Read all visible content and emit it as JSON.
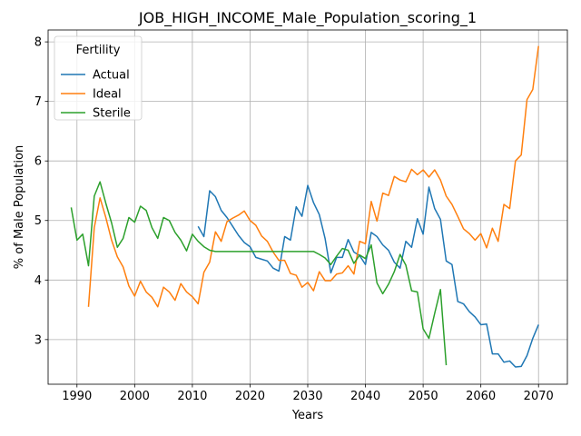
{
  "chart_data": {
    "type": "line",
    "title": "JOB_HIGH_INCOME_Male_Population_scoring_1",
    "xlabel": "Years",
    "ylabel": "% of Male Population",
    "xlim": [
      1985,
      2075
    ],
    "ylim": [
      2.25,
      8.2
    ],
    "xticks": [
      1990,
      2000,
      2010,
      2020,
      2030,
      2040,
      2050,
      2060,
      2070
    ],
    "yticks": [
      3,
      4,
      5,
      6,
      7,
      8
    ],
    "grid": true,
    "legend": {
      "title": "Fertility",
      "placement": "top-left"
    },
    "series": [
      {
        "name": "Actual",
        "color": "#1f77b4",
        "points": [
          [
            2011,
            4.9
          ],
          [
            2012,
            4.73
          ],
          [
            2013,
            5.5
          ],
          [
            2014,
            5.4
          ],
          [
            2015,
            5.17
          ],
          [
            2016,
            5.05
          ],
          [
            2017,
            4.9
          ],
          [
            2018,
            4.75
          ],
          [
            2019,
            4.63
          ],
          [
            2020,
            4.56
          ],
          [
            2021,
            4.38
          ],
          [
            2022,
            4.35
          ],
          [
            2023,
            4.32
          ],
          [
            2024,
            4.2
          ],
          [
            2025,
            4.15
          ],
          [
            2026,
            4.73
          ],
          [
            2027,
            4.67
          ],
          [
            2028,
            5.23
          ],
          [
            2029,
            5.07
          ],
          [
            2030,
            5.59
          ],
          [
            2031,
            5.3
          ],
          [
            2032,
            5.1
          ],
          [
            2033,
            4.7
          ],
          [
            2034,
            4.12
          ],
          [
            2035,
            4.38
          ],
          [
            2036,
            4.38
          ],
          [
            2037,
            4.68
          ],
          [
            2038,
            4.47
          ],
          [
            2039,
            4.41
          ],
          [
            2040,
            4.26
          ],
          [
            2041,
            4.8
          ],
          [
            2042,
            4.73
          ],
          [
            2043,
            4.59
          ],
          [
            2044,
            4.5
          ],
          [
            2045,
            4.3
          ],
          [
            2046,
            4.2
          ],
          [
            2047,
            4.65
          ],
          [
            2048,
            4.55
          ],
          [
            2049,
            5.03
          ],
          [
            2050,
            4.77
          ],
          [
            2051,
            5.56
          ],
          [
            2052,
            5.2
          ],
          [
            2053,
            5.02
          ],
          [
            2054,
            4.32
          ],
          [
            2055,
            4.26
          ],
          [
            2056,
            3.64
          ],
          [
            2057,
            3.6
          ],
          [
            2058,
            3.47
          ],
          [
            2059,
            3.38
          ],
          [
            2060,
            3.25
          ],
          [
            2061,
            3.26
          ],
          [
            2062,
            2.76
          ],
          [
            2063,
            2.76
          ],
          [
            2064,
            2.62
          ],
          [
            2065,
            2.64
          ],
          [
            2066,
            2.54
          ],
          [
            2067,
            2.55
          ],
          [
            2068,
            2.73
          ],
          [
            2069,
            3.02
          ],
          [
            2070,
            3.25
          ]
        ]
      },
      {
        "name": "Ideal",
        "color": "#ff7f0e",
        "points": [
          [
            1992,
            3.55
          ],
          [
            1993,
            4.88
          ],
          [
            1994,
            5.38
          ],
          [
            1995,
            5.05
          ],
          [
            1996,
            4.67
          ],
          [
            1997,
            4.39
          ],
          [
            1998,
            4.22
          ],
          [
            1999,
            3.9
          ],
          [
            2000,
            3.73
          ],
          [
            2001,
            3.98
          ],
          [
            2002,
            3.8
          ],
          [
            2003,
            3.71
          ],
          [
            2004,
            3.55
          ],
          [
            2005,
            3.88
          ],
          [
            2006,
            3.8
          ],
          [
            2007,
            3.66
          ],
          [
            2008,
            3.94
          ],
          [
            2009,
            3.8
          ],
          [
            2010,
            3.72
          ],
          [
            2011,
            3.6
          ],
          [
            2012,
            4.13
          ],
          [
            2013,
            4.3
          ],
          [
            2014,
            4.81
          ],
          [
            2015,
            4.65
          ],
          [
            2016,
            4.98
          ],
          [
            2017,
            5.04
          ],
          [
            2018,
            5.09
          ],
          [
            2019,
            5.16
          ],
          [
            2020,
            5.0
          ],
          [
            2021,
            4.92
          ],
          [
            2022,
            4.74
          ],
          [
            2023,
            4.65
          ],
          [
            2024,
            4.47
          ],
          [
            2025,
            4.33
          ],
          [
            2026,
            4.33
          ],
          [
            2027,
            4.11
          ],
          [
            2028,
            4.08
          ],
          [
            2029,
            3.88
          ],
          [
            2030,
            3.96
          ],
          [
            2031,
            3.82
          ],
          [
            2032,
            4.14
          ],
          [
            2033,
            3.99
          ],
          [
            2034,
            3.99
          ],
          [
            2035,
            4.1
          ],
          [
            2036,
            4.12
          ],
          [
            2037,
            4.24
          ],
          [
            2038,
            4.1
          ],
          [
            2039,
            4.65
          ],
          [
            2040,
            4.61
          ],
          [
            2041,
            5.32
          ],
          [
            2042,
            4.99
          ],
          [
            2043,
            5.46
          ],
          [
            2044,
            5.42
          ],
          [
            2045,
            5.74
          ],
          [
            2046,
            5.68
          ],
          [
            2047,
            5.65
          ],
          [
            2048,
            5.86
          ],
          [
            2049,
            5.77
          ],
          [
            2050,
            5.85
          ],
          [
            2051,
            5.73
          ],
          [
            2052,
            5.85
          ],
          [
            2053,
            5.68
          ],
          [
            2054,
            5.41
          ],
          [
            2055,
            5.27
          ],
          [
            2056,
            5.07
          ],
          [
            2057,
            4.86
          ],
          [
            2058,
            4.78
          ],
          [
            2059,
            4.67
          ],
          [
            2060,
            4.78
          ],
          [
            2061,
            4.54
          ],
          [
            2062,
            4.87
          ],
          [
            2063,
            4.65
          ],
          [
            2064,
            5.27
          ],
          [
            2065,
            5.2
          ],
          [
            2066,
            6.0
          ],
          [
            2067,
            6.1
          ],
          [
            2068,
            7.03
          ],
          [
            2069,
            7.2
          ],
          [
            2070,
            7.93
          ]
        ]
      },
      {
        "name": "Sterile",
        "color": "#2ca02c",
        "points": [
          [
            1989,
            5.22
          ],
          [
            1990,
            4.67
          ],
          [
            1991,
            4.77
          ],
          [
            1992,
            4.24
          ],
          [
            1993,
            5.41
          ],
          [
            1994,
            5.65
          ],
          [
            1995,
            5.29
          ],
          [
            1996,
            4.96
          ],
          [
            1997,
            4.55
          ],
          [
            1998,
            4.7
          ],
          [
            1999,
            5.05
          ],
          [
            2000,
            4.97
          ],
          [
            2001,
            5.24
          ],
          [
            2002,
            5.17
          ],
          [
            2003,
            4.88
          ],
          [
            2004,
            4.7
          ],
          [
            2005,
            5.05
          ],
          [
            2006,
            5.0
          ],
          [
            2007,
            4.8
          ],
          [
            2008,
            4.67
          ],
          [
            2009,
            4.49
          ],
          [
            2010,
            4.77
          ],
          [
            2011,
            4.65
          ],
          [
            2012,
            4.56
          ],
          [
            2013,
            4.5
          ],
          [
            2014,
            4.48
          ],
          [
            2015,
            4.48
          ],
          [
            2016,
            4.48
          ],
          [
            2017,
            4.48
          ],
          [
            2018,
            4.48
          ],
          [
            2019,
            4.48
          ],
          [
            2020,
            4.48
          ],
          [
            2021,
            4.48
          ],
          [
            2022,
            4.48
          ],
          [
            2023,
            4.48
          ],
          [
            2024,
            4.48
          ],
          [
            2025,
            4.48
          ],
          [
            2026,
            4.48
          ],
          [
            2027,
            4.48
          ],
          [
            2028,
            4.48
          ],
          [
            2029,
            4.48
          ],
          [
            2030,
            4.48
          ],
          [
            2031,
            4.48
          ],
          [
            2032,
            4.43
          ],
          [
            2033,
            4.37
          ],
          [
            2034,
            4.26
          ],
          [
            2035,
            4.4
          ],
          [
            2036,
            4.53
          ],
          [
            2037,
            4.5
          ],
          [
            2038,
            4.28
          ],
          [
            2039,
            4.42
          ],
          [
            2040,
            4.36
          ],
          [
            2041,
            4.59
          ],
          [
            2042,
            3.95
          ],
          [
            2043,
            3.77
          ],
          [
            2044,
            3.93
          ],
          [
            2045,
            4.14
          ],
          [
            2046,
            4.43
          ],
          [
            2047,
            4.25
          ],
          [
            2048,
            3.82
          ],
          [
            2049,
            3.8
          ],
          [
            2050,
            3.18
          ],
          [
            2051,
            3.02
          ],
          [
            2052,
            3.44
          ],
          [
            2053,
            3.84
          ],
          [
            2054,
            2.57
          ]
        ]
      }
    ]
  }
}
